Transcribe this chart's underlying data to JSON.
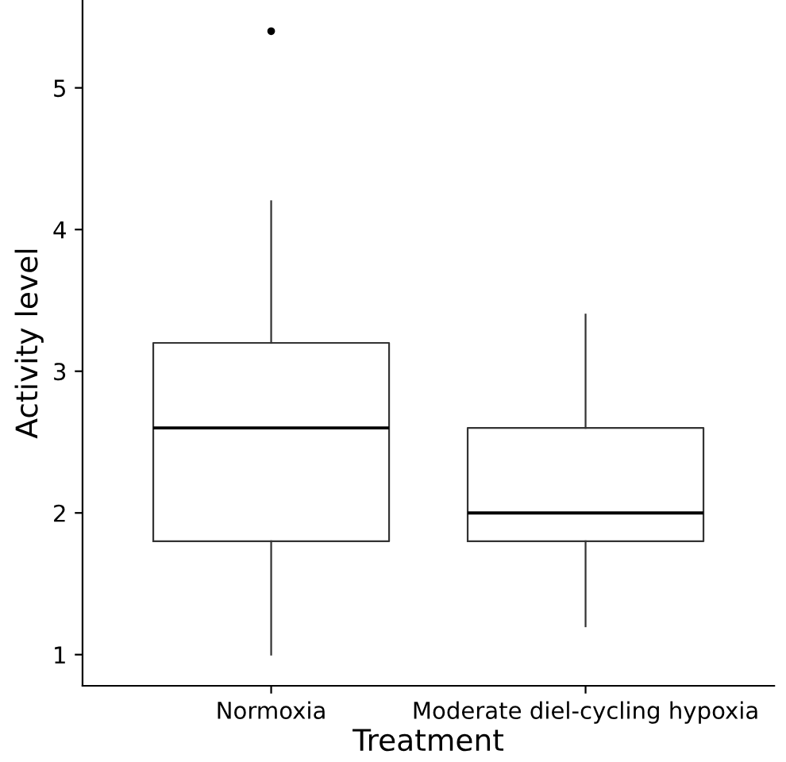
{
  "chart_data": {
    "type": "box",
    "xlabel": "Treatment",
    "ylabel": "Activity level",
    "categories": [
      "Normoxia",
      "Moderate diel-cycling hypoxia"
    ],
    "boxes": [
      {
        "low": 1.0,
        "q1": 1.8,
        "median": 2.6,
        "q3": 3.2,
        "high": 4.2,
        "outliers": [
          5.4
        ]
      },
      {
        "low": 1.2,
        "q1": 1.8,
        "median": 2.0,
        "q3": 2.6,
        "high": 3.4
      }
    ],
    "ylim": [
      0.78,
      5.62
    ],
    "yticks": [
      1,
      2,
      3,
      4,
      5
    ],
    "grid": false,
    "legend": false
  }
}
